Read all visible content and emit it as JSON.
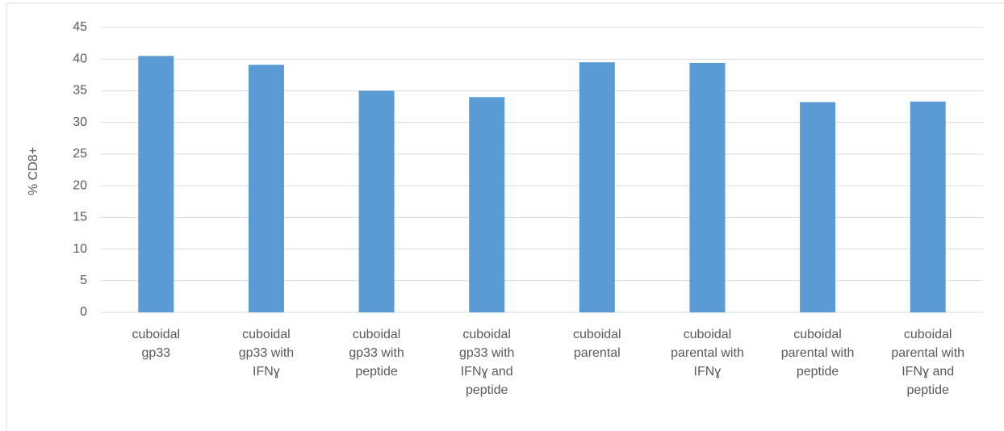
{
  "chart_data": {
    "type": "bar",
    "y_label": "% CD8+",
    "categories": [
      "cuboidal\ngp33",
      "cuboidal\ngp33 with\nIFNɣ",
      "cuboidal\ngp33 with\npeptide",
      "cuboidal\ngp33 with\nIFNɣ and\npeptide",
      "cuboidal\nparental",
      "cuboidal\nparental with\nIFNɣ",
      "cuboidal\nparental with\npeptide",
      "cuboidal\nparental with\nIFNɣ and\npeptide"
    ],
    "values": [
      40.5,
      39.1,
      35.0,
      34.0,
      39.5,
      39.4,
      33.2,
      33.3
    ],
    "color": "#5b9bd5",
    "ylim": [
      0,
      45
    ],
    "yticks": [
      0,
      5,
      10,
      15,
      20,
      25,
      30,
      35,
      40,
      45
    ],
    "grid": true
  }
}
